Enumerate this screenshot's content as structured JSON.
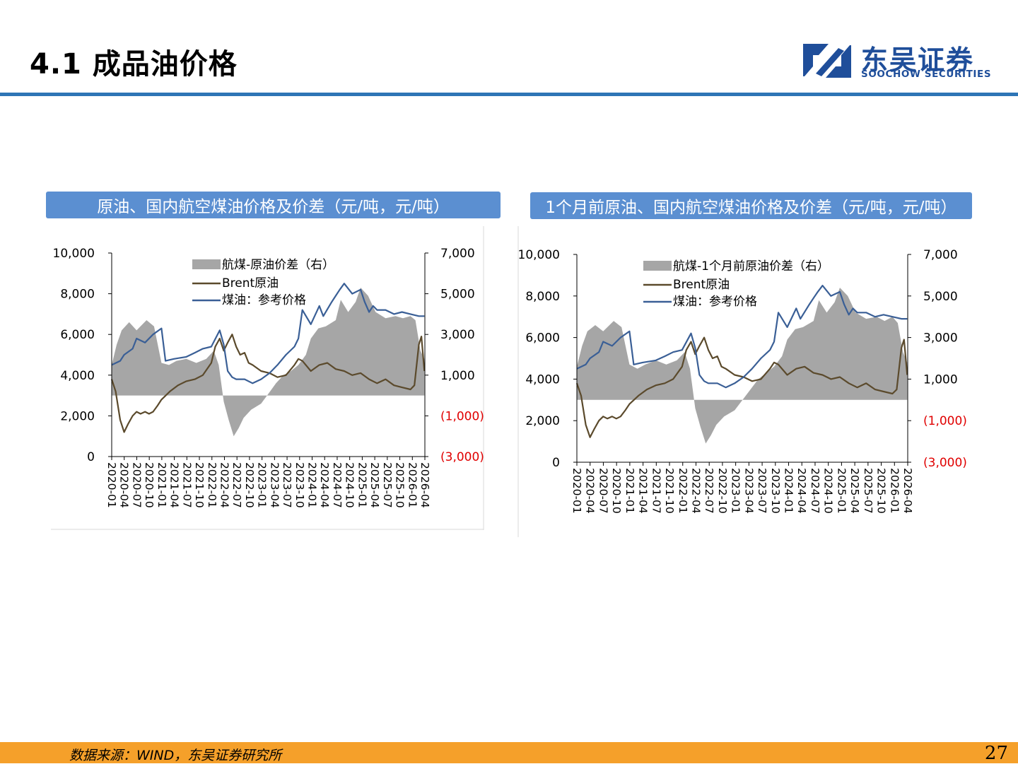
{
  "header": {
    "title": "4.1 成品油价格"
  },
  "logo": {
    "cn": "东吴证券",
    "en": "SOOCHOW SECURITIES"
  },
  "footer": {
    "source": "数据来源：WIND，东吴证券研究所",
    "page": "27"
  },
  "colors": {
    "accent": "#2e75b6",
    "header_bar": "#5b8fd1",
    "footer_bar": "#f5a02a",
    "spread": "#a6a6a6",
    "brent": "#5b4a2c",
    "jet": "#3a5f96",
    "negative_label": "#e00000"
  },
  "chart_data": [
    {
      "type": "line",
      "title": "原油、国内航空煤油价格及价差（元/吨，元/吨）",
      "left_ylim": [
        0,
        10000
      ],
      "left_ticks": [
        "10,000",
        "8,000",
        "6,000",
        "4,000",
        "2,000",
        "0"
      ],
      "right_ylim": [
        -3000,
        7000
      ],
      "right_ticks": [
        "7,000",
        "5,000",
        "3,000",
        "1,000",
        "(1,000)",
        "(3,000)"
      ],
      "x_ticks": [
        "2020-01",
        "2020-04",
        "2020-07",
        "2020-10",
        "2021-01",
        "2021-04",
        "2021-07",
        "2021-10",
        "2022-01",
        "2022-04",
        "2022-07",
        "2022-10",
        "2023-01",
        "2023-04",
        "2023-07",
        "2023-10",
        "2024-01",
        "2024-04",
        "2024-07",
        "2024-10",
        "2025-01",
        "2025-04",
        "2025-07",
        "2025-10",
        "2026-01",
        "2026-04"
      ],
      "legend": "top-center",
      "series": [
        {
          "name": "航煤-原油价差（右）",
          "kind": "area",
          "axis": "right",
          "x": [
            2020.0,
            2020.1,
            2020.2,
            2020.35,
            2020.5,
            2020.7,
            2020.85,
            2021.0,
            2021.15,
            2021.3,
            2021.5,
            2021.7,
            2021.9,
            2022.05,
            2022.15,
            2022.25,
            2022.35,
            2022.45,
            2022.55,
            2022.65,
            2022.8,
            2023.0,
            2023.15,
            2023.3,
            2023.45,
            2023.6,
            2023.75,
            2023.9,
            2024.0,
            2024.15,
            2024.3,
            2024.5,
            2024.6,
            2024.75,
            2024.9,
            2025.0,
            2025.15,
            2025.3,
            2025.5,
            2025.7,
            2025.85,
            2026.0,
            2026.1,
            2026.2,
            2026.28
          ],
          "values": [
            1500,
            2500,
            3200,
            3600,
            3200,
            3700,
            3400,
            1600,
            1500,
            1700,
            1800,
            1600,
            1800,
            2200,
            1500,
            -300,
            -1200,
            -2000,
            -1600,
            -1100,
            -700,
            -400,
            100,
            600,
            1000,
            1200,
            1500,
            2000,
            2800,
            3300,
            3400,
            3700,
            4700,
            4100,
            4600,
            5300,
            4900,
            4100,
            3800,
            3900,
            3800,
            3900,
            3700,
            2200,
            1800
          ]
        },
        {
          "name": "Brent原油",
          "kind": "line",
          "axis": "left",
          "x": [
            2020.0,
            2020.08,
            2020.17,
            2020.25,
            2020.33,
            2020.42,
            2020.5,
            2020.58,
            2020.67,
            2020.75,
            2020.83,
            2020.92,
            2021.0,
            2021.17,
            2021.33,
            2021.5,
            2021.67,
            2021.83,
            2022.0,
            2022.08,
            2022.17,
            2022.25,
            2022.33,
            2022.42,
            2022.5,
            2022.58,
            2022.67,
            2022.75,
            2022.83,
            2023.0,
            2023.17,
            2023.33,
            2023.5,
            2023.67,
            2023.75,
            2023.83,
            2024.0,
            2024.17,
            2024.33,
            2024.5,
            2024.67,
            2024.83,
            2025.0,
            2025.17,
            2025.33,
            2025.5,
            2025.67,
            2025.83,
            2026.0,
            2026.08,
            2026.17,
            2026.22,
            2026.28
          ],
          "values": [
            3800,
            3200,
            1800,
            1200,
            1600,
            2000,
            2200,
            2100,
            2200,
            2100,
            2200,
            2500,
            2800,
            3200,
            3500,
            3700,
            3800,
            4000,
            4600,
            5400,
            5800,
            5200,
            5600,
            6000,
            5400,
            5000,
            5100,
            4600,
            4500,
            4200,
            4100,
            3900,
            4000,
            4500,
            4800,
            4700,
            4200,
            4500,
            4600,
            4300,
            4200,
            4000,
            4100,
            3800,
            3600,
            3800,
            3500,
            3400,
            3300,
            3500,
            5500,
            5900,
            4200
          ]
        },
        {
          "name": "煤油：参考价格",
          "kind": "line",
          "axis": "left",
          "x": [
            2020.0,
            2020.17,
            2020.25,
            2020.42,
            2020.5,
            2020.67,
            2020.83,
            2021.0,
            2021.08,
            2021.25,
            2021.5,
            2021.67,
            2021.83,
            2022.0,
            2022.17,
            2022.25,
            2022.33,
            2022.42,
            2022.5,
            2022.67,
            2022.83,
            2023.0,
            2023.17,
            2023.33,
            2023.5,
            2023.67,
            2023.75,
            2023.83,
            2024.0,
            2024.17,
            2024.25,
            2024.42,
            2024.5,
            2024.58,
            2024.67,
            2024.83,
            2025.0,
            2025.08,
            2025.17,
            2025.25,
            2025.33,
            2025.5,
            2025.67,
            2025.83,
            2026.0,
            2026.17,
            2026.28
          ],
          "values": [
            4500,
            4700,
            5000,
            5300,
            5800,
            5600,
            6000,
            6300,
            4700,
            4800,
            4900,
            5100,
            5300,
            5400,
            6200,
            5500,
            4200,
            3900,
            3800,
            3800,
            3600,
            3800,
            4100,
            4500,
            5000,
            5400,
            5800,
            7200,
            6500,
            7400,
            6900,
            7600,
            7900,
            8200,
            8500,
            8000,
            8200,
            7600,
            7100,
            7400,
            7200,
            7200,
            7000,
            7100,
            7000,
            6900,
            6900
          ]
        }
      ]
    },
    {
      "type": "line",
      "title": "1个月前原油、国内航空煤油价格及价差（元/吨，元/吨）",
      "left_ylim": [
        0,
        10000
      ],
      "left_ticks": [
        "10,000",
        "8,000",
        "6,000",
        "4,000",
        "2,000",
        "0"
      ],
      "right_ylim": [
        -3000,
        7000
      ],
      "right_ticks": [
        "7,000",
        "5,000",
        "3,000",
        "1,000",
        "(1,000)",
        "(3,000)"
      ],
      "x_ticks": [
        "2020-01",
        "2020-04",
        "2020-07",
        "2020-10",
        "2021-01",
        "2021-04",
        "2021-07",
        "2021-10",
        "2022-01",
        "2022-04",
        "2022-07",
        "2022-10",
        "2023-01",
        "2023-04",
        "2023-07",
        "2023-10",
        "2024-01",
        "2024-04",
        "2024-07",
        "2024-10",
        "2025-01",
        "2025-04",
        "2025-07",
        "2025-10",
        "2026-01",
        "2026-04"
      ],
      "legend": "top-center",
      "series": [
        {
          "name": "航煤-1个月前原油价差（右）",
          "kind": "area",
          "axis": "right",
          "x": [
            2020.0,
            2020.1,
            2020.2,
            2020.35,
            2020.5,
            2020.7,
            2020.85,
            2021.0,
            2021.15,
            2021.3,
            2021.5,
            2021.7,
            2021.9,
            2022.05,
            2022.15,
            2022.25,
            2022.35,
            2022.45,
            2022.55,
            2022.65,
            2022.8,
            2023.0,
            2023.15,
            2023.3,
            2023.45,
            2023.6,
            2023.75,
            2023.9,
            2024.0,
            2024.15,
            2024.3,
            2024.5,
            2024.6,
            2024.75,
            2024.9,
            2025.0,
            2025.15,
            2025.3,
            2025.5,
            2025.7,
            2025.85,
            2026.0,
            2026.1,
            2026.2,
            2026.28
          ],
          "values": [
            1600,
            2600,
            3300,
            3600,
            3300,
            3800,
            3500,
            1700,
            1500,
            1700,
            1900,
            1700,
            1900,
            2300,
            1500,
            -400,
            -1300,
            -2100,
            -1700,
            -1200,
            -800,
            -500,
            0,
            500,
            1000,
            1300,
            1600,
            2100,
            2900,
            3400,
            3500,
            3800,
            4800,
            4200,
            4700,
            5400,
            5000,
            4200,
            3900,
            4000,
            3800,
            4000,
            3700,
            2300,
            1800
          ]
        },
        {
          "name": "Brent原油",
          "kind": "line",
          "axis": "left",
          "x": [
            2020.0,
            2020.08,
            2020.17,
            2020.25,
            2020.33,
            2020.42,
            2020.5,
            2020.58,
            2020.67,
            2020.75,
            2020.83,
            2020.92,
            2021.0,
            2021.17,
            2021.33,
            2021.5,
            2021.67,
            2021.83,
            2022.0,
            2022.08,
            2022.17,
            2022.25,
            2022.33,
            2022.42,
            2022.5,
            2022.58,
            2022.67,
            2022.75,
            2022.83,
            2023.0,
            2023.17,
            2023.33,
            2023.5,
            2023.67,
            2023.75,
            2023.83,
            2024.0,
            2024.17,
            2024.33,
            2024.5,
            2024.67,
            2024.83,
            2025.0,
            2025.17,
            2025.33,
            2025.5,
            2025.67,
            2025.83,
            2026.0,
            2026.08,
            2026.17,
            2026.22,
            2026.28
          ],
          "values": [
            3800,
            3200,
            1800,
            1200,
            1600,
            2000,
            2200,
            2100,
            2200,
            2100,
            2200,
            2500,
            2800,
            3200,
            3500,
            3700,
            3800,
            4000,
            4600,
            5400,
            5800,
            5200,
            5600,
            6000,
            5400,
            5000,
            5100,
            4600,
            4500,
            4200,
            4100,
            3900,
            4000,
            4500,
            4800,
            4700,
            4200,
            4500,
            4600,
            4300,
            4200,
            4000,
            4100,
            3800,
            3600,
            3800,
            3500,
            3400,
            3300,
            3500,
            5500,
            5900,
            4200
          ]
        },
        {
          "name": "煤油：参考价格",
          "kind": "line",
          "axis": "left",
          "x": [
            2020.0,
            2020.17,
            2020.25,
            2020.42,
            2020.5,
            2020.67,
            2020.83,
            2021.0,
            2021.08,
            2021.25,
            2021.5,
            2021.67,
            2021.83,
            2022.0,
            2022.17,
            2022.25,
            2022.33,
            2022.42,
            2022.5,
            2022.67,
            2022.83,
            2023.0,
            2023.17,
            2023.33,
            2023.5,
            2023.67,
            2023.75,
            2023.83,
            2024.0,
            2024.17,
            2024.25,
            2024.42,
            2024.5,
            2024.58,
            2024.67,
            2024.83,
            2025.0,
            2025.08,
            2025.17,
            2025.25,
            2025.33,
            2025.5,
            2025.67,
            2025.83,
            2026.0,
            2026.17,
            2026.28
          ],
          "values": [
            4500,
            4700,
            5000,
            5300,
            5800,
            5600,
            6000,
            6300,
            4700,
            4800,
            4900,
            5100,
            5300,
            5400,
            6200,
            5500,
            4200,
            3900,
            3800,
            3800,
            3600,
            3800,
            4100,
            4500,
            5000,
            5400,
            5800,
            7200,
            6500,
            7400,
            6900,
            7600,
            7900,
            8200,
            8500,
            8000,
            8200,
            7600,
            7100,
            7400,
            7200,
            7200,
            7000,
            7100,
            7000,
            6900,
            6900
          ]
        }
      ]
    }
  ]
}
